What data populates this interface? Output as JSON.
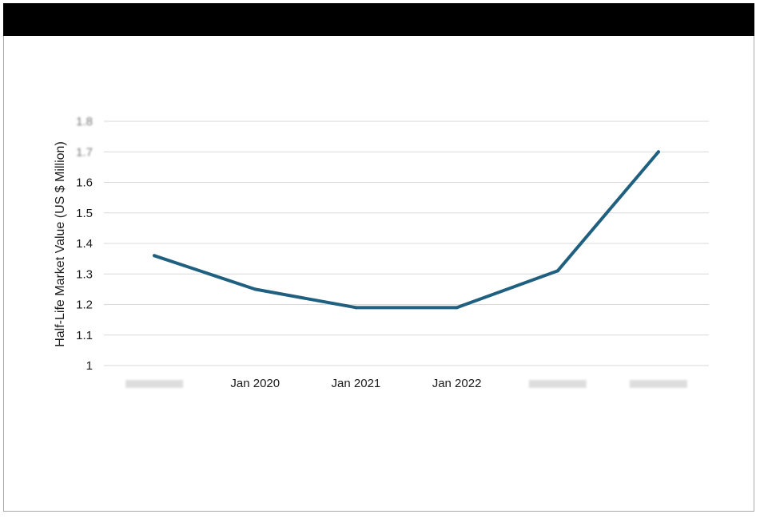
{
  "chart_data": {
    "type": "line",
    "title": "",
    "xlabel": "",
    "ylabel": "Half-Life Market Value (US $ Million)",
    "categories": [
      "",
      "Jan 2020",
      "Jan 2021",
      "Jan 2022",
      "",
      ""
    ],
    "series": [
      {
        "values": [
          1.36,
          1.25,
          1.19,
          1.19,
          1.31,
          1.7
        ]
      }
    ],
    "ytick_labels": [
      "1",
      "1.1",
      "1.2",
      "1.3",
      "1.4",
      "1.5",
      "1.6",
      "1.7",
      "1.8"
    ],
    "ylim": [
      1,
      1.8
    ],
    "grid": true,
    "legend": "none",
    "colors": {
      "line": "#1f5f7f",
      "grid": "#d9d9d9",
      "title_bar": "#000000"
    }
  }
}
